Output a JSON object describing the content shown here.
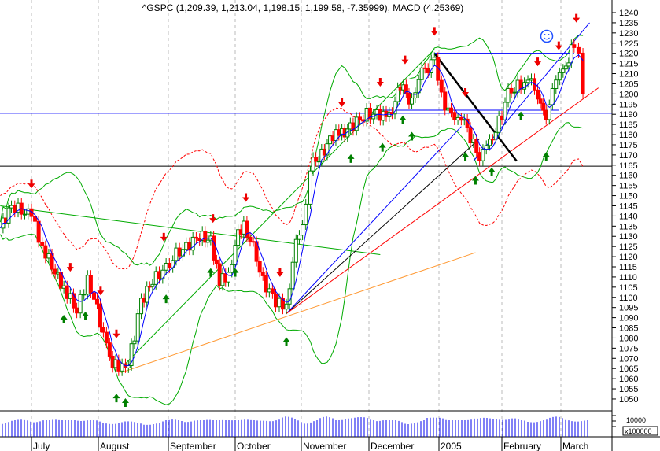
{
  "chart_data": {
    "type": "candlestick",
    "title": "^GSPC (1,209.39, 1,213.04, 1,198.15, 1,199.58, -7.35999), MACD (4.25369)",
    "ylim": [
      1045,
      1242
    ],
    "y_ticks": [
      1050,
      1055,
      1060,
      1065,
      1070,
      1075,
      1080,
      1085,
      1090,
      1095,
      1100,
      1105,
      1110,
      1115,
      1120,
      1125,
      1130,
      1135,
      1140,
      1145,
      1150,
      1155,
      1160,
      1165,
      1170,
      1175,
      1180,
      1185,
      1190,
      1195,
      1200,
      1205,
      1210,
      1215,
      1220,
      1225,
      1230,
      1235,
      1240
    ],
    "x_tick_labels": [
      {
        "date": "2004-07-01",
        "label": "July"
      },
      {
        "date": "2004-08-01",
        "label": "August"
      },
      {
        "date": "2004-09-01",
        "label": "September"
      },
      {
        "date": "2004-10-01",
        "label": "October"
      },
      {
        "date": "2004-11-01",
        "label": "November"
      },
      {
        "date": "2004-12-01",
        "label": "December"
      },
      {
        "date": "2005-01-01",
        "label": "2005"
      },
      {
        "date": "2005-02-01",
        "label": "February"
      },
      {
        "date": "2005-03-01",
        "label": "March"
      }
    ],
    "grid": true,
    "closes": [
      [
        "2004-06-17",
        1134
      ],
      [
        "2004-06-22",
        1145
      ],
      [
        "2004-07-01",
        1140
      ],
      [
        "2004-07-06",
        1125
      ],
      [
        "2004-07-12",
        1112
      ],
      [
        "2004-07-16",
        1105
      ],
      [
        "2004-07-22",
        1093
      ],
      [
        "2004-07-27",
        1110
      ],
      [
        "2004-07-30",
        1100
      ],
      [
        "2004-08-06",
        1070
      ],
      [
        "2004-08-10",
        1065
      ],
      [
        "2004-08-13",
        1064
      ],
      [
        "2004-08-17",
        1080
      ],
      [
        "2004-08-20",
        1098
      ],
      [
        "2004-08-25",
        1108
      ],
      [
        "2004-08-31",
        1115
      ],
      [
        "2004-09-03",
        1120
      ],
      [
        "2004-09-09",
        1125
      ],
      [
        "2004-09-15",
        1130
      ],
      [
        "2004-09-20",
        1128
      ],
      [
        "2004-09-24",
        1108
      ],
      [
        "2004-09-28",
        1110
      ],
      [
        "2004-10-01",
        1128
      ],
      [
        "2004-10-05",
        1135
      ],
      [
        "2004-10-08",
        1130
      ],
      [
        "2004-10-14",
        1108
      ],
      [
        "2004-10-20",
        1098
      ],
      [
        "2004-10-25",
        1094
      ],
      [
        "2004-10-28",
        1120
      ],
      [
        "2004-11-03",
        1143
      ],
      [
        "2004-11-05",
        1165
      ],
      [
        "2004-11-10",
        1170
      ],
      [
        "2004-11-15",
        1180
      ],
      [
        "2004-11-19",
        1180
      ],
      [
        "2004-11-24",
        1185
      ],
      [
        "2004-11-30",
        1190
      ],
      [
        "2004-12-06",
        1190
      ],
      [
        "2004-12-10",
        1188
      ],
      [
        "2004-12-15",
        1205
      ],
      [
        "2004-12-20",
        1195
      ],
      [
        "2004-12-23",
        1210
      ],
      [
        "2004-12-30",
        1215
      ],
      [
        "2005-01-04",
        1195
      ],
      [
        "2005-01-07",
        1188
      ],
      [
        "2005-01-12",
        1190
      ],
      [
        "2005-01-18",
        1175
      ],
      [
        "2005-01-21",
        1170
      ],
      [
        "2005-01-26",
        1175
      ],
      [
        "2005-02-01",
        1190
      ],
      [
        "2005-02-04",
        1200
      ],
      [
        "2005-02-10",
        1205
      ],
      [
        "2005-02-15",
        1205
      ],
      [
        "2005-02-18",
        1200
      ],
      [
        "2005-02-22",
        1185
      ],
      [
        "2005-02-25",
        1205
      ],
      [
        "2005-03-02",
        1210
      ],
      [
        "2005-03-07",
        1225
      ],
      [
        "2005-03-09",
        1218
      ],
      [
        "2005-03-11",
        1200
      ]
    ],
    "horizontal_lines": [
      {
        "price": 1190.5,
        "color": "#0000ff"
      },
      {
        "price": 1164.5,
        "color": "#000000"
      }
    ],
    "trendlines": [
      {
        "from": [
          "2004-06-17",
          1145
        ],
        "to": [
          "2004-12-06",
          1121
        ],
        "color": "#00aa00",
        "width": 1
      },
      {
        "from": [
          "2004-08-10",
          1064
        ],
        "to": [
          "2004-12-30",
          1222
        ],
        "color": "#00aa00",
        "width": 1
      },
      {
        "from": [
          "2004-08-11",
          1063
        ],
        "to": [
          "2005-01-19",
          1122
        ],
        "color": "#ff9933",
        "width": 1
      },
      {
        "from": [
          "2004-10-25",
          1092
        ],
        "to": [
          "2005-01-21",
          1178
        ],
        "color": "#000000",
        "width": 1
      },
      {
        "from": [
          "2004-10-25",
          1092
        ],
        "to": [
          "2005-01-12",
          1184
        ],
        "color": "#0000ff",
        "width": 1
      },
      {
        "from": [
          "2004-10-25",
          1092
        ],
        "to": [
          "2005-03-18",
          1203
        ],
        "color": "#ff0000",
        "width": 1
      },
      {
        "from": [
          "2005-01-18",
          1167
        ],
        "to": [
          "2005-03-14",
          1235
        ],
        "color": "#0000ff",
        "width": 1
      },
      {
        "from": [
          "2004-12-30",
          1220
        ],
        "to": [
          "2005-02-08",
          1167
        ],
        "color": "#000000",
        "width": 2.5
      },
      {
        "from": [
          "2004-12-30",
          1220
        ],
        "to": [
          "2005-03-07",
          1220
        ],
        "color": "#0000ff",
        "width": 1
      },
      {
        "from": [
          "2004-12-07",
          1192
        ],
        "to": [
          "2005-02-28",
          1192
        ],
        "color": "#0000ff",
        "width": 1
      }
    ],
    "sell_signals": [
      "2004-07-01",
      "2004-07-19",
      "2004-08-02",
      "2004-08-09",
      "2004-08-30",
      "2004-09-21",
      "2004-10-06",
      "2004-10-22",
      "2004-11-19",
      "2004-12-06",
      "2004-12-17",
      "2004-12-30",
      "2005-01-14",
      "2005-02-18",
      "2005-02-28",
      "2005-03-08"
    ],
    "buy_signals": [
      "2004-07-16",
      "2004-07-26",
      "2004-08-09",
      "2004-08-13",
      "2004-08-31",
      "2004-09-20",
      "2004-10-01",
      "2004-10-25",
      "2004-11-23",
      "2004-12-07",
      "2004-12-16",
      "2004-12-20",
      "2005-01-14",
      "2005-01-19",
      "2005-01-27",
      "2005-02-10",
      "2005-02-22"
    ],
    "volume": {
      "unit_label": "x100000",
      "tick_label": "10000",
      "values": [
        13,
        14,
        15,
        14,
        16,
        15,
        14,
        17,
        15,
        14,
        12,
        13,
        14,
        12,
        11,
        13,
        14,
        15,
        14,
        16,
        15,
        14,
        17,
        16,
        15,
        14,
        16,
        15,
        17,
        16,
        13,
        15,
        17,
        16,
        18,
        17,
        16,
        15,
        17,
        14,
        10,
        14,
        18,
        16,
        15,
        17,
        16,
        15,
        17,
        18,
        16,
        15,
        14,
        15,
        16,
        17,
        16,
        15,
        14
      ]
    },
    "indicator_icon": "smiley-icon",
    "colors": {
      "up": "#008000",
      "down": "#ff0000",
      "ma": "#0000ff",
      "bands": "#00aa00",
      "macd": "#ff0000"
    }
  }
}
